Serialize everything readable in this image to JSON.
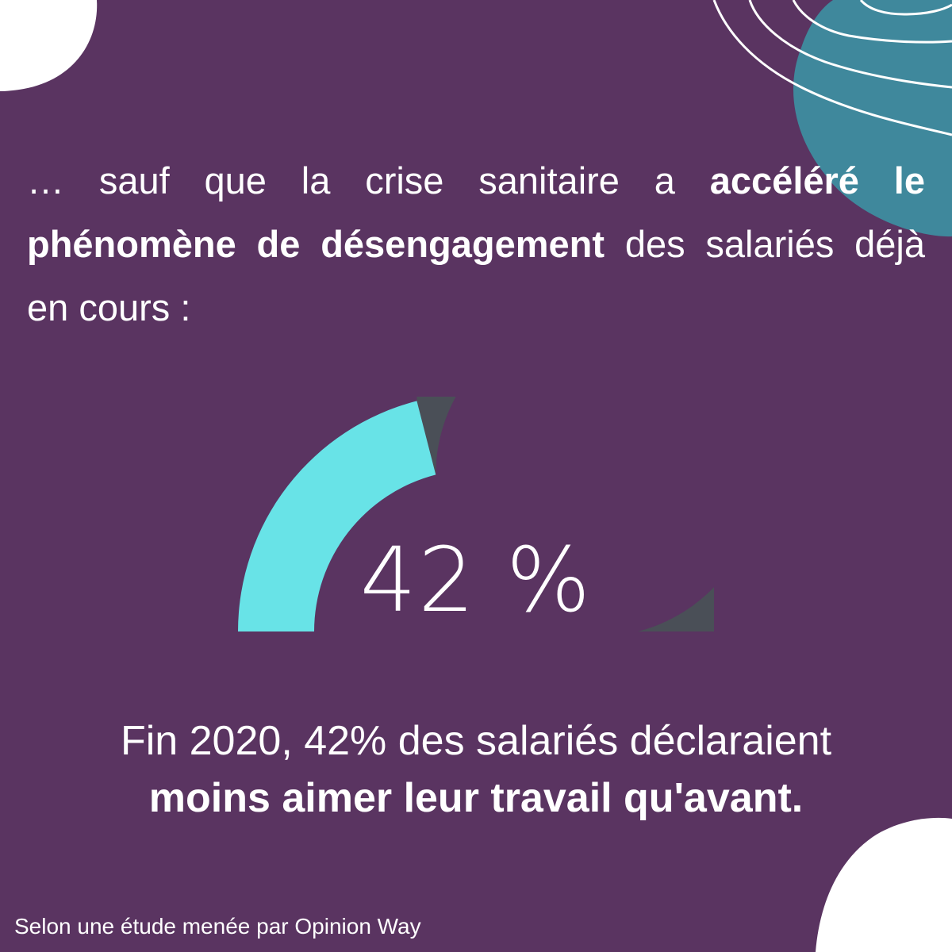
{
  "intro": {
    "part1": "… sauf que la crise sanitaire a ",
    "bold": "accéléré le phénomène de désengagement",
    "part2": " des salariés déjà en cours :"
  },
  "chart_data": {
    "type": "gauge",
    "value": 42,
    "max": 100,
    "label": "42 %",
    "colors": {
      "filled": "#68e3e7",
      "remaining": "#4a4f57"
    }
  },
  "caption": {
    "line1": "Fin 2020, 42% des salariés déclaraient",
    "line2": "moins aimer leur travail qu'avant."
  },
  "source": "Selon une étude menée par Opinion Way",
  "colors": {
    "background": "#5a3461",
    "accent_teal": "#3f889c",
    "blob_white": "#ffffff"
  }
}
